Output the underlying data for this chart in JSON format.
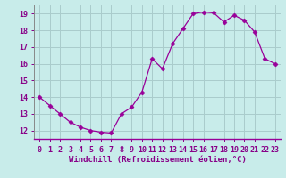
{
  "x": [
    0,
    1,
    2,
    3,
    4,
    5,
    6,
    7,
    8,
    9,
    10,
    11,
    12,
    13,
    14,
    15,
    16,
    17,
    18,
    19,
    20,
    21,
    22,
    23
  ],
  "y": [
    14.0,
    13.5,
    13.0,
    12.5,
    12.2,
    12.0,
    11.9,
    11.85,
    13.0,
    13.4,
    14.3,
    16.3,
    15.7,
    17.2,
    18.1,
    19.0,
    19.1,
    19.05,
    18.5,
    18.9,
    18.6,
    17.9,
    16.3,
    16.0
  ],
  "line_color": "#990099",
  "marker": "D",
  "marker_size": 2.5,
  "bg_color": "#c8ecea",
  "grid_color": "#aacccc",
  "xlabel": "Windchill (Refroidissement éolien,°C)",
  "xlabel_fontsize": 6.5,
  "yticks": [
    12,
    13,
    14,
    15,
    16,
    17,
    18,
    19
  ],
  "xticks": [
    0,
    1,
    2,
    3,
    4,
    5,
    6,
    7,
    8,
    9,
    10,
    11,
    12,
    13,
    14,
    15,
    16,
    17,
    18,
    19,
    20,
    21,
    22,
    23
  ],
  "ylim": [
    11.5,
    19.5
  ],
  "xlim": [
    -0.5,
    23.5
  ],
  "tick_fontsize": 6.0,
  "label_color": "#880088",
  "spine_color": "#888888",
  "axis_line_color": "#990099"
}
